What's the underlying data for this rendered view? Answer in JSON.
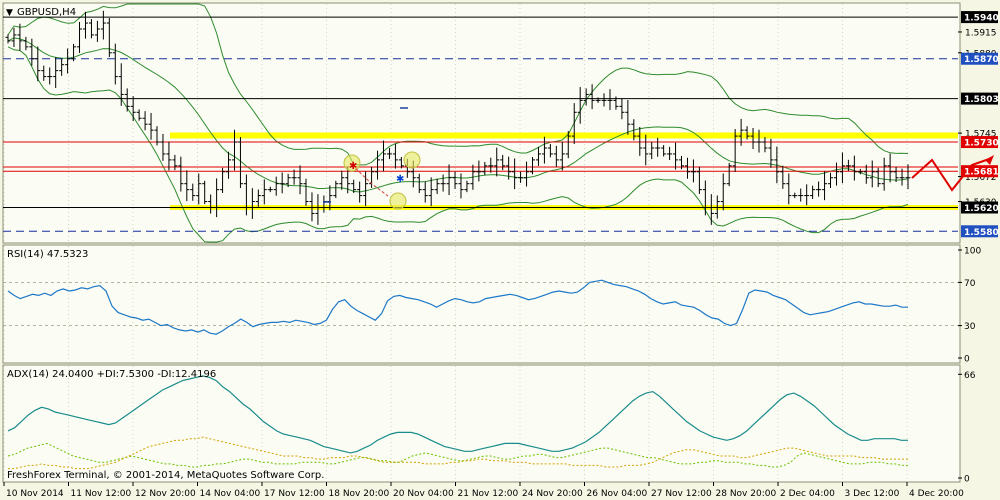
{
  "window": {
    "symbol_title": "GBPUSD,H4",
    "copyright": "FreshForex Terminal, © 2001-2014, MetaQuotes Software Corp."
  },
  "colors": {
    "background": "#f5f7e4",
    "chart_area": "#fbfcf3",
    "grid": "#b8bca0",
    "bars": "#000000",
    "bollinger": "#2e8b2e",
    "support_zone": "#ffff00",
    "resistance_red": "#e00000",
    "rsi_line": "#1e78c8",
    "adx_line": "#1a8c8c",
    "di_plus": "#6bbf00",
    "di_minus": "#d4a000",
    "price_label_bg": "#000000",
    "red_label_bg": "#e00000",
    "blue_label_bg": "#2050c0"
  },
  "chart_data": [
    {
      "type": "candlestick-ohlc",
      "title": "GBPUSD,H4",
      "ylim": [
        1.5562,
        1.5962
      ],
      "y_ticks": [
        "1.5915",
        "1.5880",
        "1.5745",
        "1.5672",
        "1.5630"
      ],
      "price_labels": [
        {
          "value": 1.594,
          "text": "1.5940",
          "style": "black"
        },
        {
          "value": 1.587,
          "text": "1.5870",
          "style": "blue"
        },
        {
          "value": 1.5803,
          "text": "1.5803",
          "style": "black"
        },
        {
          "value": 1.573,
          "text": "1.5730",
          "style": "red"
        },
        {
          "value": 1.5681,
          "text": "1.5681",
          "style": "red"
        },
        {
          "value": 1.562,
          "text": "1.5620",
          "style": "black"
        },
        {
          "value": 1.558,
          "text": "1.5580",
          "style": "blue"
        }
      ],
      "horizontal_lines": [
        {
          "value": 1.594,
          "color": "#000000",
          "dash": false
        },
        {
          "value": 1.587,
          "color": "#1a2e9e",
          "dash": true
        },
        {
          "value": 1.5803,
          "color": "#000000",
          "dash": false
        },
        {
          "value": 1.573,
          "color": "#e00000",
          "dash": false
        },
        {
          "value": 1.5688,
          "color": "#e00000",
          "dash": false
        },
        {
          "value": 1.5681,
          "color": "#e00000",
          "dash": false
        },
        {
          "value": 1.562,
          "color": "#000000",
          "dash": false
        },
        {
          "value": 1.558,
          "color": "#1a2e9e",
          "dash": true
        }
      ],
      "zones": [
        {
          "from": 1.5736,
          "to": 1.5746
        },
        {
          "from": 1.5616,
          "to": 1.5624
        }
      ],
      "closes": [
        1.59,
        1.591,
        1.59,
        1.589,
        1.587,
        1.585,
        1.584,
        1.584,
        1.585,
        1.586,
        1.587,
        1.589,
        1.592,
        1.593,
        1.591,
        1.592,
        1.593,
        1.588,
        1.584,
        1.581,
        1.579,
        1.578,
        1.577,
        1.576,
        1.575,
        1.573,
        1.571,
        1.57,
        1.569,
        1.566,
        1.565,
        1.564,
        1.566,
        1.563,
        1.562,
        1.565,
        1.568,
        1.57,
        1.573,
        1.566,
        1.562,
        1.563,
        1.564,
        1.565,
        1.565,
        1.566,
        1.566,
        1.567,
        1.567,
        1.566,
        1.563,
        1.561,
        1.562,
        1.563,
        1.564,
        1.566,
        1.567,
        1.566,
        1.565,
        1.564,
        1.566,
        1.568,
        1.57,
        1.571,
        1.571,
        1.57,
        1.569,
        1.568,
        1.567,
        1.565,
        1.564,
        1.565,
        1.566,
        1.566,
        1.567,
        1.566,
        1.565,
        1.566,
        1.568,
        1.568,
        1.569,
        1.569,
        1.57,
        1.569,
        1.568,
        1.567,
        1.567,
        1.568,
        1.57,
        1.571,
        1.572,
        1.571,
        1.57,
        1.571,
        1.574,
        1.578,
        1.58,
        1.581,
        1.58,
        1.58,
        1.58,
        1.58,
        1.579,
        1.578,
        1.576,
        1.574,
        1.572,
        1.571,
        1.572,
        1.572,
        1.571,
        1.571,
        1.57,
        1.569,
        1.568,
        1.568,
        1.565,
        1.562,
        1.561,
        1.563,
        1.566,
        1.569,
        1.574,
        1.575,
        1.574,
        1.573,
        1.573,
        1.572,
        1.57,
        1.568,
        1.566,
        1.564,
        1.564,
        1.564,
        1.564,
        1.565,
        1.565,
        1.566,
        1.567,
        1.568,
        1.569,
        1.569,
        1.568,
        1.568,
        1.567,
        1.568,
        1.566,
        1.569,
        1.568,
        1.567,
        1.567,
        1.567
      ],
      "x_ticks": [
        "10 Nov 2014",
        "11 Nov 12:00",
        "12 Nov 20:00",
        "14 Nov 04:00",
        "17 Nov 12:00",
        "18 Nov 20:00",
        "20 Nov 04:00",
        "21 Nov 12:00",
        "24 Nov 20:00",
        "26 Nov 04:00",
        "27 Nov 12:00",
        "28 Nov 20:00",
        "2 Dec 04:00",
        "3 Dec 12:00",
        "4 Dec 20:00"
      ]
    },
    {
      "type": "line",
      "title": "RSI(14) 47.5323",
      "ylim": [
        0,
        100
      ],
      "y_ticks": [
        "100",
        "70",
        "30",
        "0"
      ],
      "levels": [
        70,
        30
      ],
      "values": [
        62,
        58,
        55,
        57,
        59,
        58,
        60,
        58,
        62,
        64,
        62,
        63,
        65,
        64,
        66,
        67,
        62,
        48,
        42,
        40,
        38,
        37,
        35,
        36,
        33,
        30,
        31,
        28,
        26,
        25,
        26,
        24,
        26,
        23,
        22,
        25,
        29,
        32,
        36,
        33,
        29,
        31,
        32,
        33,
        33,
        34,
        33,
        35,
        34,
        33,
        31,
        32,
        35,
        45,
        52,
        54,
        48,
        44,
        41,
        38,
        35,
        41,
        53,
        57,
        58,
        56,
        55,
        54,
        52,
        50,
        47,
        50,
        53,
        55,
        54,
        52,
        51,
        52,
        55,
        56,
        57,
        58,
        59,
        58,
        56,
        54,
        55,
        57,
        59,
        61,
        62,
        61,
        60,
        61,
        65,
        70,
        71,
        72,
        70,
        68,
        67,
        66,
        64,
        62,
        59,
        55,
        52,
        50,
        51,
        52,
        49,
        48,
        47,
        44,
        40,
        37,
        36,
        32,
        30,
        32,
        45,
        60,
        63,
        62,
        61,
        58,
        56,
        54,
        50,
        46,
        42,
        40,
        41,
        42,
        43,
        45,
        47,
        49,
        51,
        52,
        50,
        50,
        49,
        48,
        48,
        49,
        47,
        47
      ]
    },
    {
      "type": "line",
      "title": "ADX(14) 24.0400 +DI:7.5300 -DI:12.4196",
      "ylim": [
        0,
        70
      ],
      "y_ticks": [
        "66",
        "0"
      ],
      "series": [
        {
          "name": "ADX(14)",
          "values": [
            30,
            32,
            36,
            40,
            43,
            45,
            44,
            42,
            41,
            40,
            39,
            38,
            37,
            36,
            35,
            34,
            35,
            38,
            41,
            44,
            47,
            50,
            53,
            56,
            58,
            60,
            62,
            63,
            64,
            65,
            64,
            62,
            58,
            55,
            51,
            47,
            44,
            40,
            36,
            33,
            30,
            28,
            27,
            26,
            25,
            24,
            22,
            20,
            19,
            18,
            17,
            16,
            17,
            19,
            21,
            24,
            26,
            28,
            29,
            29,
            29,
            28,
            26,
            24,
            22,
            20,
            19,
            18,
            17,
            17,
            18,
            19,
            20,
            21,
            22,
            22,
            22,
            21,
            20,
            19,
            18,
            17,
            17,
            18,
            19,
            21,
            23,
            26,
            29,
            33,
            37,
            41,
            45,
            49,
            52,
            54,
            55,
            52,
            48,
            44,
            40,
            36,
            33,
            30,
            28,
            26,
            25,
            24,
            25,
            27,
            30,
            34,
            38,
            42,
            46,
            50,
            53,
            54,
            52,
            49,
            46,
            42,
            38,
            34,
            31,
            28,
            26,
            24,
            24,
            25,
            25,
            25,
            25,
            24,
            24
          ]
        },
        {
          "name": "+DI",
          "values": [
            14,
            15,
            17,
            19,
            20,
            21,
            22,
            20,
            18,
            16,
            14,
            13,
            12,
            11,
            10,
            10,
            11,
            12,
            13,
            14,
            13,
            12,
            11,
            10,
            9,
            9,
            8,
            8,
            7,
            7,
            8,
            8,
            9,
            9,
            10,
            11,
            12,
            12,
            11,
            10,
            10,
            9,
            9,
            9,
            9,
            10,
            10,
            10,
            10,
            9,
            9,
            10,
            11,
            12,
            13,
            13,
            12,
            11,
            11,
            10,
            10,
            12,
            14,
            15,
            16,
            15,
            14,
            13,
            12,
            11,
            11,
            12,
            13,
            14,
            14,
            13,
            12,
            12,
            13,
            14,
            14,
            15,
            15,
            14,
            13,
            13,
            14,
            15,
            16,
            17,
            18,
            19,
            19,
            18,
            17,
            16,
            15,
            14,
            13,
            13,
            12,
            11,
            10,
            9,
            9,
            9,
            10,
            10,
            11,
            11,
            10,
            10,
            10,
            9,
            9,
            8,
            8,
            7,
            7,
            8,
            10,
            14,
            16,
            15,
            14,
            13,
            12,
            11,
            10,
            9,
            9,
            9,
            10,
            10,
            10,
            9,
            9,
            8,
            8
          ]
        },
        {
          "name": "-DI",
          "values": [
            6,
            6,
            7,
            8,
            8,
            9,
            8,
            8,
            7,
            7,
            6,
            6,
            6,
            7,
            8,
            9,
            10,
            12,
            14,
            16,
            18,
            20,
            21,
            22,
            23,
            24,
            24,
            25,
            25,
            26,
            25,
            24,
            23,
            22,
            21,
            20,
            19,
            18,
            17,
            16,
            15,
            14,
            14,
            14,
            13,
            13,
            12,
            12,
            13,
            13,
            13,
            14,
            14,
            13,
            12,
            11,
            10,
            10,
            10,
            10,
            10,
            10,
            9,
            9,
            9,
            9,
            10,
            10,
            11,
            11,
            12,
            12,
            11,
            11,
            11,
            10,
            10,
            10,
            9,
            9,
            9,
            9,
            9,
            9,
            8,
            8,
            8,
            8,
            8,
            7,
            7,
            7,
            8,
            8,
            8,
            9,
            10,
            12,
            14,
            16,
            17,
            18,
            18,
            17,
            16,
            15,
            14,
            14,
            14,
            13,
            13,
            14,
            15,
            16,
            17,
            18,
            19,
            19,
            18,
            17,
            16,
            15,
            14,
            14,
            14,
            14,
            14,
            13,
            13,
            13,
            12,
            12,
            12,
            12,
            12
          ]
        }
      ]
    }
  ]
}
